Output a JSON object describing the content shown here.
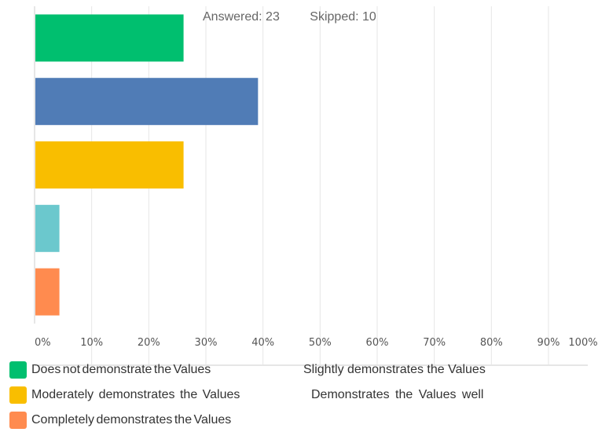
{
  "summary": {
    "answered": "Answered: 23",
    "skipped": "Skipped: 10"
  },
  "chart_data": {
    "type": "bar",
    "orientation": "horizontal",
    "categories": [
      "Does not demonstrate the Values",
      "Slightly demonstrates the Values",
      "Moderately demonstrates the Values",
      "Demonstrates the Values well",
      "Completely demonstrates the Values"
    ],
    "values": [
      26.09,
      39.13,
      26.09,
      4.35,
      4.35
    ],
    "colors": [
      "#00bf6f",
      "#507cb6",
      "#f9be00",
      "#6bc8cd",
      "#ff8b4f"
    ],
    "xlim": [
      0,
      100
    ],
    "x_ticks": [
      "0%",
      "10%",
      "20%",
      "30%",
      "40%",
      "50%",
      "60%",
      "70%",
      "80%",
      "90%",
      "100%"
    ],
    "grid": true,
    "legend_position": "bottom"
  },
  "legend": [
    {
      "label": "Does not demonstrate the Values",
      "color": "#00bf6f"
    },
    {
      "label": "Slightly demonstrates the Values",
      "color": "#507cb6"
    },
    {
      "label": "Moderately demonstrates the Values",
      "color": "#f9be00"
    },
    {
      "label": "Demonstrates the Values well",
      "color": "#6bc8cd"
    },
    {
      "label": "Completely demonstrates the Values",
      "color": "#ff8b4f"
    }
  ]
}
